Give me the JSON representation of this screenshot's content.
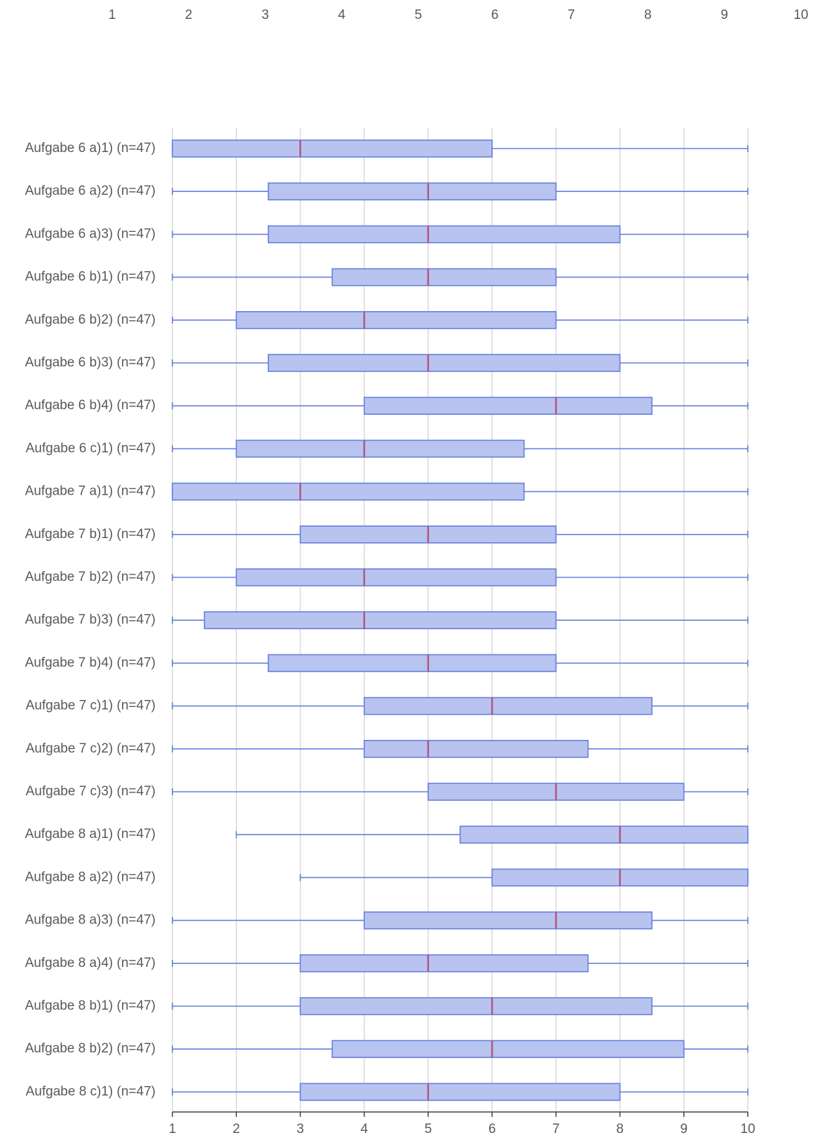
{
  "chart_data": {
    "type": "boxplot",
    "orientation": "horizontal",
    "title": "",
    "xlabel": "",
    "ylabel": "",
    "xlim": [
      1,
      10
    ],
    "top_axis_ticks": [
      "1",
      "2",
      "3",
      "4",
      "5",
      "6",
      "7",
      "8",
      "9",
      "10"
    ],
    "x_ticks": [
      "1",
      "2",
      "3",
      "4",
      "5",
      "6",
      "7",
      "8",
      "9",
      "10"
    ],
    "grid": true,
    "legend": "none",
    "colors": {
      "box_fill": "#b8c3f0",
      "box_stroke": "#6680dc",
      "median": "#b0557a",
      "grid": "#d9d9d9",
      "axis": "#404040",
      "text": "#595959"
    },
    "series": [
      {
        "label": "Aufgabe 6 a)1) (n=47)",
        "min": 1,
        "q1": 1,
        "median": 3,
        "q3": 6,
        "max": 10
      },
      {
        "label": "Aufgabe 6 a)2) (n=47)",
        "min": 1,
        "q1": 2.5,
        "median": 5,
        "q3": 7,
        "max": 10
      },
      {
        "label": "Aufgabe 6 a)3) (n=47)",
        "min": 1,
        "q1": 2.5,
        "median": 5,
        "q3": 8,
        "max": 10
      },
      {
        "label": "Aufgabe 6 b)1) (n=47)",
        "min": 1,
        "q1": 3.5,
        "median": 5,
        "q3": 7,
        "max": 10
      },
      {
        "label": "Aufgabe 6 b)2) (n=47)",
        "min": 1,
        "q1": 2,
        "median": 4,
        "q3": 7,
        "max": 10
      },
      {
        "label": "Aufgabe 6 b)3) (n=47)",
        "min": 1,
        "q1": 2.5,
        "median": 5,
        "q3": 8,
        "max": 10
      },
      {
        "label": "Aufgabe 6 b)4) (n=47)",
        "min": 1,
        "q1": 4,
        "median": 7,
        "q3": 8.5,
        "max": 10
      },
      {
        "label": "Aufgabe 6 c)1) (n=47)",
        "min": 1,
        "q1": 2,
        "median": 4,
        "q3": 6.5,
        "max": 10
      },
      {
        "label": "Aufgabe 7 a)1) (n=47)",
        "min": 1,
        "q1": 1,
        "median": 3,
        "q3": 6.5,
        "max": 10
      },
      {
        "label": "Aufgabe 7 b)1) (n=47)",
        "min": 1,
        "q1": 3,
        "median": 5,
        "q3": 7,
        "max": 10
      },
      {
        "label": "Aufgabe 7 b)2) (n=47)",
        "min": 1,
        "q1": 2,
        "median": 4,
        "q3": 7,
        "max": 10
      },
      {
        "label": "Aufgabe 7 b)3) (n=47)",
        "min": 1,
        "q1": 1.5,
        "median": 4,
        "q3": 7,
        "max": 10
      },
      {
        "label": "Aufgabe 7 b)4) (n=47)",
        "min": 1,
        "q1": 2.5,
        "median": 5,
        "q3": 7,
        "max": 10
      },
      {
        "label": "Aufgabe 7 c)1) (n=47)",
        "min": 1,
        "q1": 4,
        "median": 6,
        "q3": 8.5,
        "max": 10
      },
      {
        "label": "Aufgabe 7 c)2) (n=47)",
        "min": 1,
        "q1": 4,
        "median": 5,
        "q3": 7.5,
        "max": 10
      },
      {
        "label": "Aufgabe 7 c)3) (n=47)",
        "min": 1,
        "q1": 5,
        "median": 7,
        "q3": 9,
        "max": 10
      },
      {
        "label": "Aufgabe 8 a)1) (n=47)",
        "min": 2,
        "q1": 5.5,
        "median": 8,
        "q3": 10,
        "max": 10
      },
      {
        "label": "Aufgabe 8 a)2) (n=47)",
        "min": 3,
        "q1": 6,
        "median": 8,
        "q3": 10,
        "max": 10
      },
      {
        "label": "Aufgabe 8 a)3) (n=47)",
        "min": 1,
        "q1": 4,
        "median": 7,
        "q3": 8.5,
        "max": 10
      },
      {
        "label": "Aufgabe 8 a)4) (n=47)",
        "min": 1,
        "q1": 3,
        "median": 5,
        "q3": 7.5,
        "max": 10
      },
      {
        "label": "Aufgabe 8 b)1) (n=47)",
        "min": 1,
        "q1": 3,
        "median": 6,
        "q3": 8.5,
        "max": 10
      },
      {
        "label": "Aufgabe 8 b)2) (n=47)",
        "min": 1,
        "q1": 3.5,
        "median": 6,
        "q3": 9,
        "max": 10
      },
      {
        "label": "Aufgabe 8 c)1) (n=47)",
        "min": 1,
        "q1": 3,
        "median": 5,
        "q3": 8,
        "max": 10
      }
    ]
  }
}
